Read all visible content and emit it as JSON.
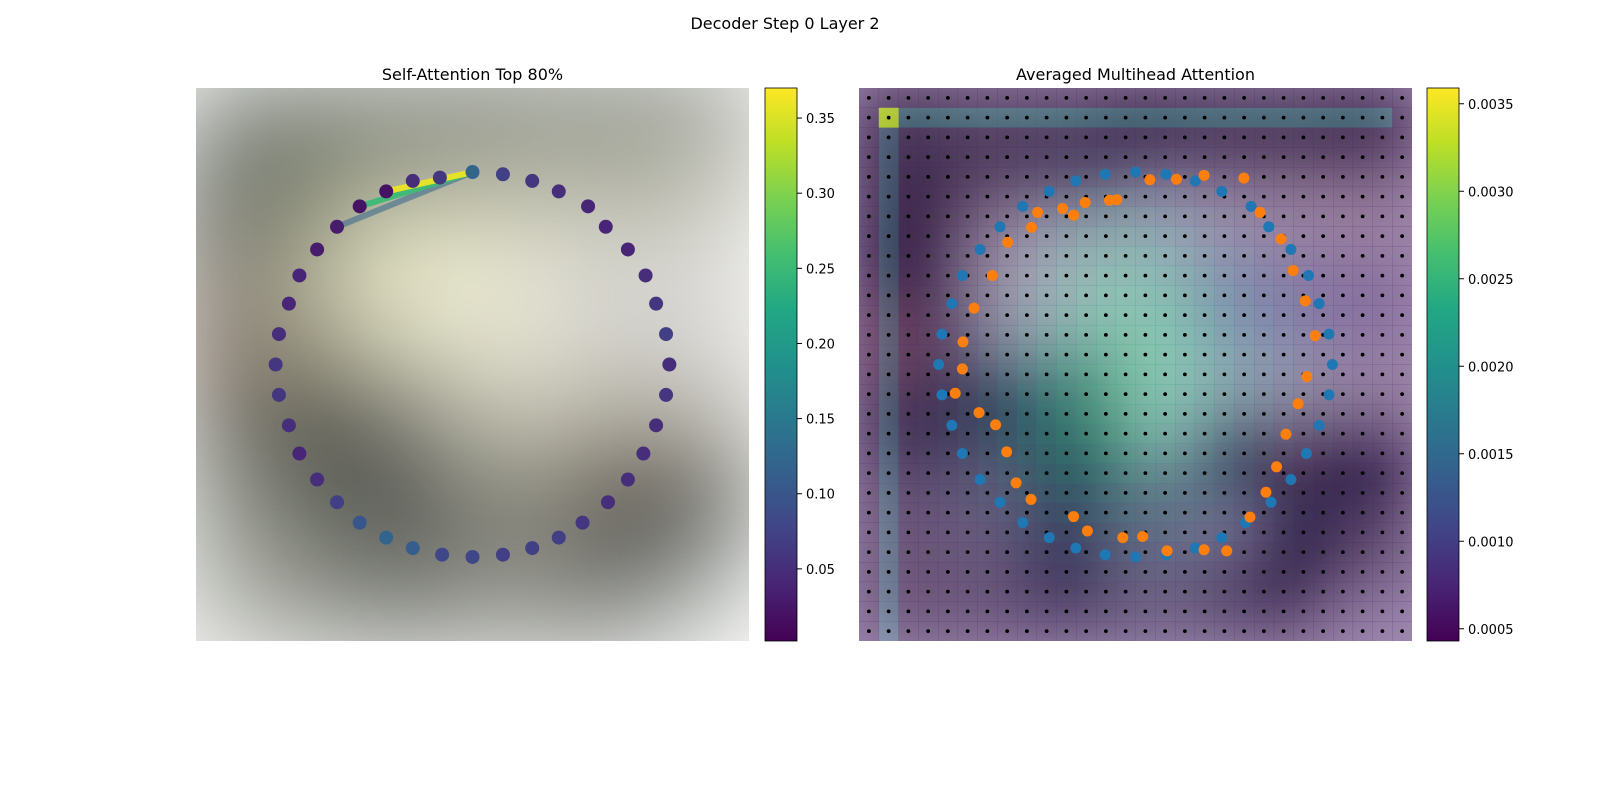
{
  "figure": {
    "title": "Decoder Step 0 Layer 2"
  },
  "chart_data": [
    {
      "type": "scatter",
      "title": "Self-Attention Top 80%",
      "background": "blurred photo of a street scene with a white van and a person with a bicycle",
      "xlim": [
        0,
        1
      ],
      "ylim": [
        0,
        1
      ],
      "points": {
        "x": [
          0.5,
          0.555,
          0.608,
          0.656,
          0.709,
          0.741,
          0.781,
          0.813,
          0.832,
          0.85,
          0.856,
          0.85,
          0.832,
          0.809,
          0.781,
          0.745,
          0.699,
          0.656,
          0.608,
          0.555,
          0.5,
          0.445,
          0.392,
          0.344,
          0.296,
          0.255,
          0.219,
          0.187,
          0.168,
          0.15,
          0.144,
          0.15,
          0.168,
          0.187,
          0.219,
          0.255,
          0.296,
          0.344,
          0.392,
          0.441
        ],
        "y": [
          0.848,
          0.844,
          0.832,
          0.813,
          0.786,
          0.749,
          0.708,
          0.661,
          0.61,
          0.555,
          0.5,
          0.445,
          0.39,
          0.339,
          0.292,
          0.251,
          0.214,
          0.187,
          0.168,
          0.156,
          0.152,
          0.156,
          0.168,
          0.187,
          0.214,
          0.251,
          0.292,
          0.339,
          0.39,
          0.445,
          0.5,
          0.555,
          0.61,
          0.661,
          0.708,
          0.749,
          0.786,
          0.813,
          0.832,
          0.838
        ],
        "attention": [
          0.12,
          0.07,
          0.06,
          0.05,
          0.04,
          0.04,
          0.04,
          0.05,
          0.06,
          0.07,
          0.05,
          0.06,
          0.05,
          0.05,
          0.05,
          0.05,
          0.06,
          0.07,
          0.07,
          0.07,
          0.08,
          0.08,
          0.11,
          0.12,
          0.1,
          0.07,
          0.05,
          0.04,
          0.05,
          0.06,
          0.06,
          0.05,
          0.04,
          0.04,
          0.03,
          0.03,
          0.02,
          0.02,
          0.05,
          0.06
        ]
      },
      "attention_lines": [
        {
          "from": 0,
          "to": 37,
          "value": 0.36
        },
        {
          "from": 0,
          "to": 36,
          "value": 0.25
        },
        {
          "from": 0,
          "to": 35,
          "value": 0.12
        }
      ],
      "colorbar": {
        "colormap": "viridis",
        "range": [
          0.002,
          0.37
        ],
        "ticks": [
          0.05,
          0.1,
          0.15,
          0.2,
          0.25,
          0.3,
          0.35
        ],
        "tick_labels": [
          "0.05",
          "0.10",
          "0.15",
          "0.20",
          "0.25",
          "0.30",
          "0.35"
        ]
      }
    },
    {
      "type": "heatmap",
      "title": "Averaged Multihead Attention",
      "background": "same blurred street scene, overlaid with a 28x28 attention grid and black grid points",
      "grid": [
        28,
        28
      ],
      "highlight_cell": {
        "col": 1,
        "row": 1,
        "value": 0.0033
      },
      "series": [
        {
          "color": "#1f77b4",
          "x": [
            0.5,
            0.555,
            0.608,
            0.656,
            0.709,
            0.741,
            0.781,
            0.813,
            0.832,
            0.85,
            0.856,
            0.85,
            0.832,
            0.809,
            0.781,
            0.745,
            0.699,
            0.656,
            0.608,
            0.555,
            0.5,
            0.445,
            0.392,
            0.344,
            0.296,
            0.255,
            0.219,
            0.187,
            0.168,
            0.15,
            0.144,
            0.15,
            0.168,
            0.187,
            0.219,
            0.255,
            0.296,
            0.344,
            0.392,
            0.445
          ],
          "y": [
            0.848,
            0.844,
            0.832,
            0.813,
            0.786,
            0.749,
            0.708,
            0.661,
            0.61,
            0.555,
            0.5,
            0.445,
            0.39,
            0.339,
            0.292,
            0.251,
            0.214,
            0.187,
            0.168,
            0.156,
            0.152,
            0.156,
            0.168,
            0.187,
            0.214,
            0.251,
            0.292,
            0.339,
            0.39,
            0.445,
            0.5,
            0.555,
            0.61,
            0.661,
            0.708,
            0.749,
            0.786,
            0.813,
            0.832,
            0.844
          ]
        },
        {
          "color": "#ff7f0e",
          "x": [
            0.466,
            0.453,
            0.388,
            0.312,
            0.269,
            0.241,
            0.208,
            0.188,
            0.187,
            0.174,
            0.217,
            0.247,
            0.267,
            0.284,
            0.311,
            0.388,
            0.413,
            0.477,
            0.513,
            0.557,
            0.624,
            0.665,
            0.707,
            0.736,
            0.755,
            0.772,
            0.794,
            0.81,
            0.825,
            0.807,
            0.785,
            0.763,
            0.725,
            0.696,
            0.624,
            0.574,
            0.526,
            0.409,
            0.368,
            0.323
          ],
          "y": [
            0.798,
            0.797,
            0.77,
            0.748,
            0.721,
            0.661,
            0.602,
            0.541,
            0.492,
            0.448,
            0.413,
            0.391,
            0.342,
            0.286,
            0.256,
            0.225,
            0.199,
            0.187,
            0.189,
            0.163,
            0.165,
            0.163,
            0.224,
            0.269,
            0.315,
            0.374,
            0.429,
            0.478,
            0.552,
            0.615,
            0.67,
            0.727,
            0.775,
            0.837,
            0.842,
            0.835,
            0.834,
            0.793,
            0.782,
            0.775
          ]
        }
      ],
      "colorbar": {
        "colormap": "viridis",
        "range": [
          0.00043,
          0.00359
        ],
        "ticks": [
          0.0005,
          0.001,
          0.0015,
          0.002,
          0.0025,
          0.003,
          0.0035
        ],
        "tick_labels": [
          "0.0005",
          "0.0010",
          "0.0015",
          "0.0020",
          "0.0025",
          "0.0030",
          "0.0035"
        ]
      }
    }
  ]
}
